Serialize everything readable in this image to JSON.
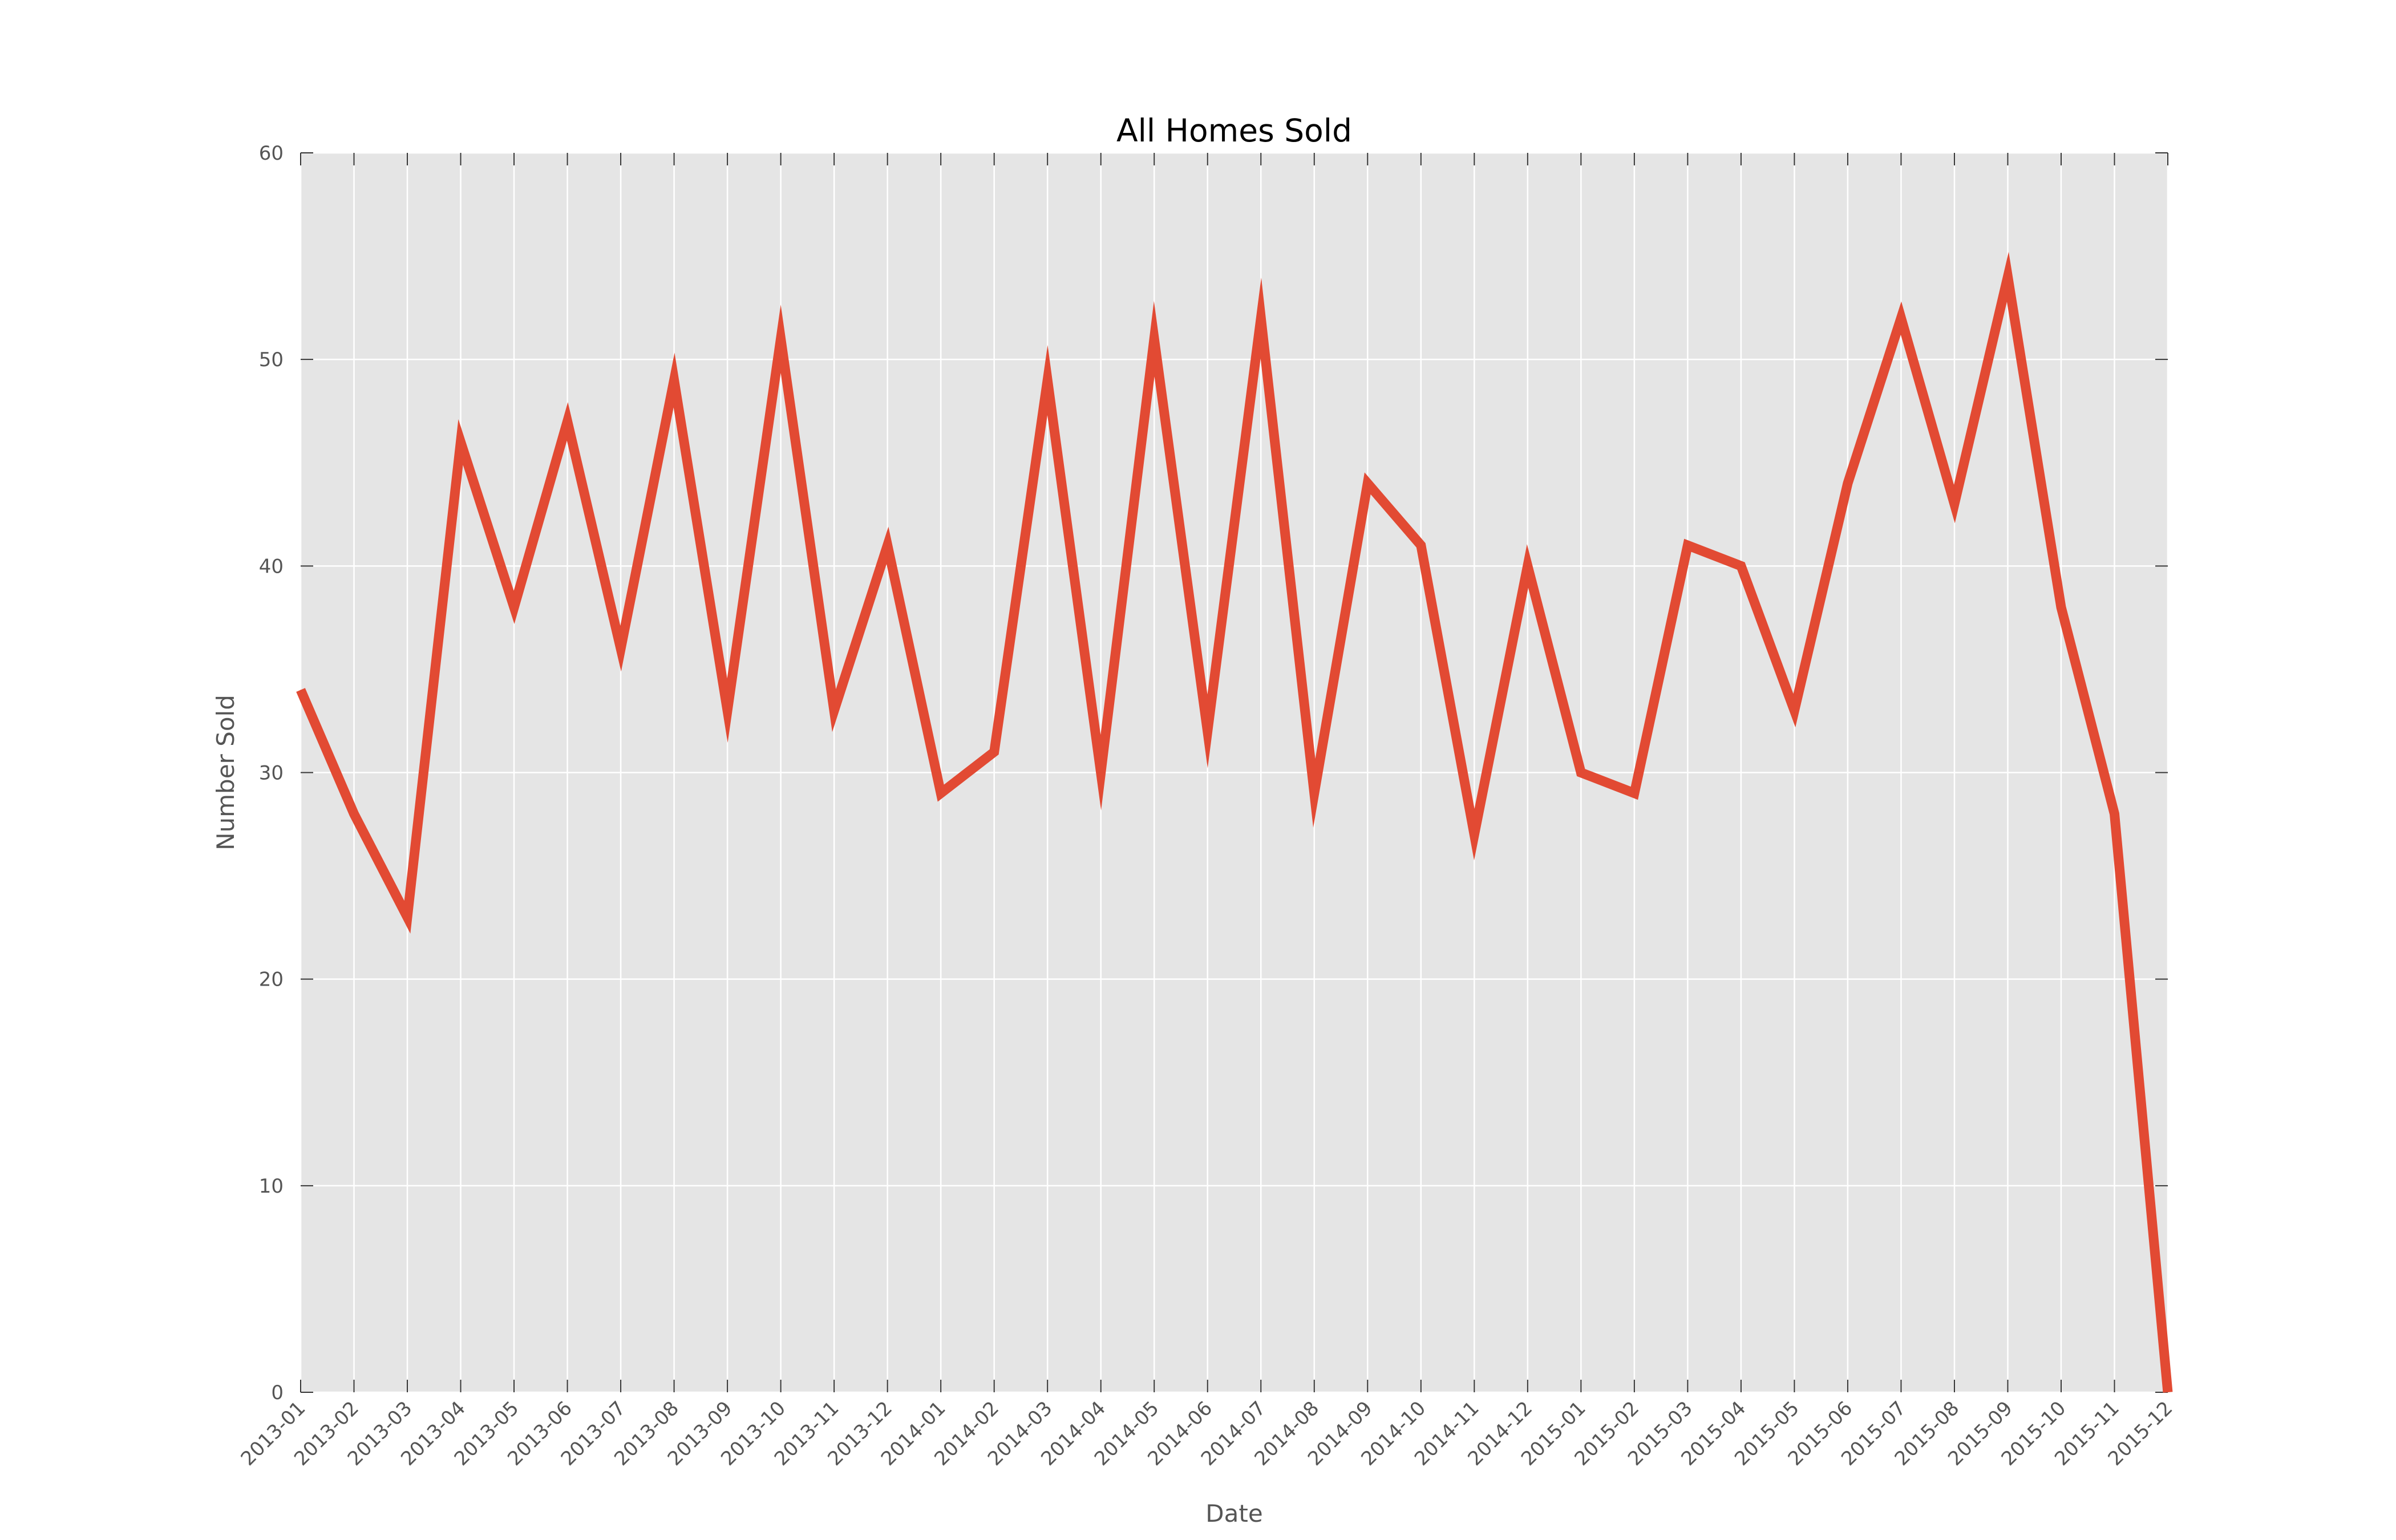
{
  "chart_data": {
    "type": "line",
    "title": "All Homes Sold",
    "xlabel": "Date",
    "ylabel": "Number Sold",
    "ylim": [
      0,
      60
    ],
    "yticks": [
      "0",
      "10",
      "20",
      "30",
      "40",
      "50",
      "60"
    ],
    "grid": true,
    "categories": [
      "2013-01",
      "2013-02",
      "2013-03",
      "2013-04",
      "2013-05",
      "2013-06",
      "2013-07",
      "2013-08",
      "2013-09",
      "2013-10",
      "2013-11",
      "2013-12",
      "2014-01",
      "2014-02",
      "2014-03",
      "2014-04",
      "2014-05",
      "2014-06",
      "2014-07",
      "2014-08",
      "2014-09",
      "2014-10",
      "2014-11",
      "2014-12",
      "2015-01",
      "2015-02",
      "2015-03",
      "2015-04",
      "2015-05",
      "2015-06",
      "2015-07",
      "2015-08",
      "2015-09",
      "2015-10",
      "2015-11",
      "2015-12"
    ],
    "series": [
      {
        "values": [
          34,
          28,
          23,
          46,
          38,
          47,
          36,
          49,
          33,
          51,
          33,
          41,
          29,
          31,
          49,
          30,
          51,
          32,
          52,
          29,
          44,
          41,
          27,
          40,
          30,
          29,
          41,
          40,
          33,
          44,
          52,
          43,
          54,
          38,
          28,
          0
        ],
        "color": "#e24a33"
      }
    ]
  },
  "colors": {
    "plot_background": "#e5e5e5",
    "grid": "#ffffff",
    "tick_text": "#555555",
    "title_text": "#000000"
  }
}
